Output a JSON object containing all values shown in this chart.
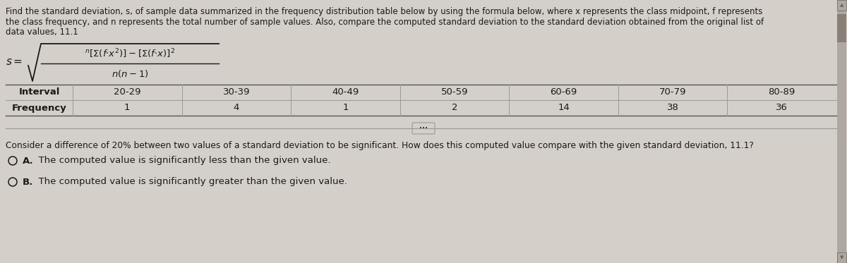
{
  "bg_color": "#d4cfc9",
  "panel_color": "#c8c3bc",
  "text_color": "#1a1a1a",
  "title_lines": [
    "Find the standard deviation, s, of sample data summarized in the frequency distribution table below by using the formula below, where x represents the class midpoint, f represents",
    "the class frequency, and n represents the total number of sample values. Also, compare the computed standard deviation to the standard deviation obtained from the original list of",
    "data values, 11.1"
  ],
  "table_headers": [
    "Interval",
    "20-29",
    "30-39",
    "40-49",
    "50-59",
    "60-69",
    "70-79",
    "80-89"
  ],
  "table_row_label": "Frequency",
  "table_row_values": [
    "1",
    "4",
    "1",
    "2",
    "14",
    "38",
    "36"
  ],
  "question_text": "Consider a difference of 20% between two values of a standard deviation to be significant. How does this computed value compare with the given standard deviation, 11.1?",
  "option_a_bold": "A.",
  "option_a_text": "  The computed value is significantly less than the given value.",
  "option_b_bold": "B.",
  "option_b_text": "  The computed value is significantly greater than the given value.",
  "line_color": "#999999",
  "dark_line_color": "#555555",
  "font_size_title": 8.5,
  "font_size_table": 9.5,
  "font_size_formula": 9.5,
  "font_size_question": 8.8,
  "font_size_options": 9.5,
  "scrollbar_color": "#b0a8a0",
  "scrollbar_thumb": "#888077",
  "scrollbar_arrow": "#6a6460"
}
